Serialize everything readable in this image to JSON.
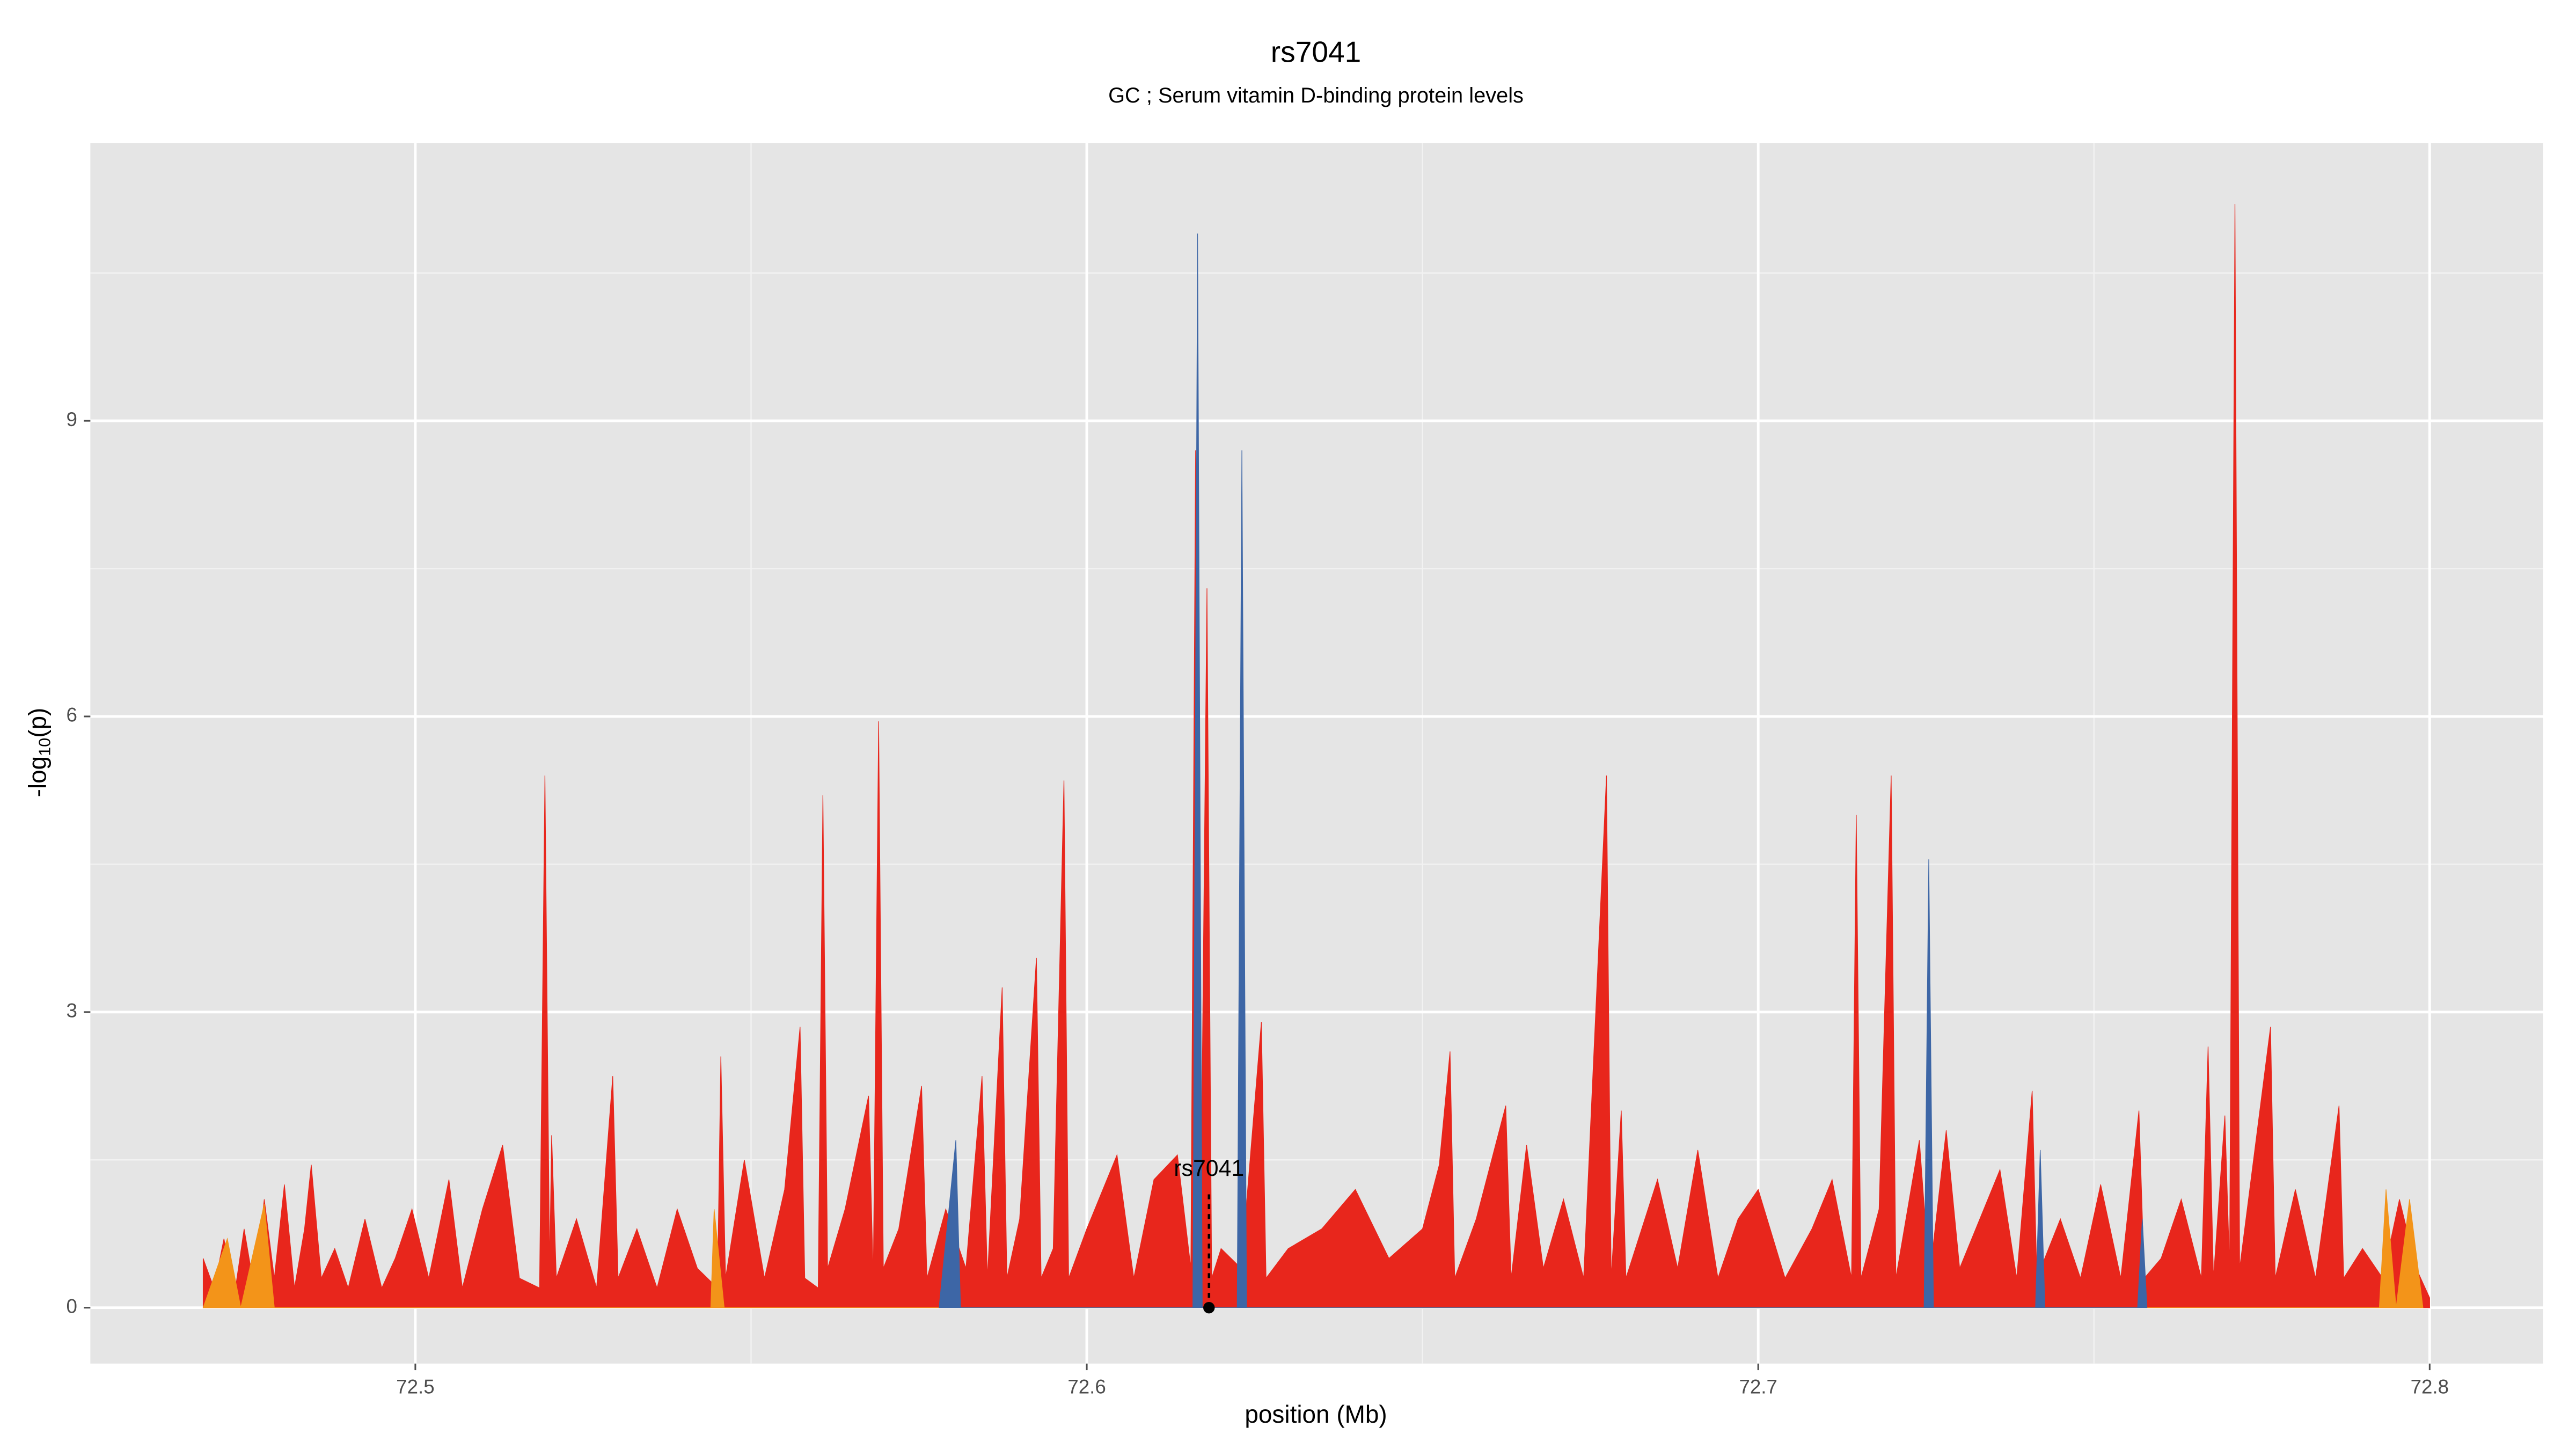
{
  "chart_data": {
    "type": "area",
    "title": "rs7041",
    "subtitle": "GC ; Serum vitamin D-binding protein levels",
    "x_label": "position (Mb)",
    "y_label": [
      "-log",
      "10",
      "(p)"
    ],
    "xlim": [
      72.4516,
      72.8169
    ],
    "xticks": [
      72.5,
      72.6,
      72.7,
      72.8
    ],
    "ylim": [
      -0.567,
      11.82
    ],
    "yticks": [
      0,
      3,
      6,
      9
    ],
    "grid": true,
    "annotation": {
      "label": "rs7041",
      "x": 72.6182,
      "y": 0
    },
    "series": [
      {
        "name": "red",
        "color": "#e8261c",
        "x": [
          72.4684,
          72.47,
          72.4715,
          72.473,
          72.4745,
          72.476,
          72.4775,
          72.479,
          72.4805,
          72.482,
          72.4835,
          72.4845,
          72.486,
          72.488,
          72.49,
          72.4925,
          72.495,
          72.497,
          72.4995,
          72.502,
          72.505,
          72.507,
          72.51,
          72.513,
          72.5155,
          72.5185,
          72.5193,
          72.52,
          72.5203,
          72.521,
          72.524,
          72.527,
          72.5294,
          72.5302,
          72.533,
          72.536,
          72.539,
          72.542,
          72.545,
          72.5455,
          72.5462,
          72.549,
          72.552,
          72.555,
          72.5573,
          72.558,
          72.56,
          72.5607,
          72.5614,
          72.564,
          72.5675,
          72.5682,
          72.569,
          72.5697,
          72.572,
          72.5754,
          72.5762,
          72.579,
          72.582,
          72.5844,
          72.5852,
          72.5874,
          72.5881,
          72.59,
          72.5925,
          72.5932,
          72.595,
          72.5966,
          72.5973,
          72.6,
          72.6045,
          72.607,
          72.61,
          72.6135,
          72.6155,
          72.6162,
          72.6169,
          72.6179,
          72.6186,
          72.62,
          72.623,
          72.626,
          72.6267,
          72.63,
          72.635,
          72.64,
          72.645,
          72.65,
          72.6525,
          72.6541,
          72.6548,
          72.658,
          72.6624,
          72.6632,
          72.6655,
          72.668,
          72.671,
          72.674,
          72.6774,
          72.6781,
          72.6796,
          72.6803,
          72.685,
          72.688,
          72.691,
          72.694,
          72.697,
          72.7,
          72.704,
          72.708,
          72.711,
          72.7139,
          72.7146,
          72.7153,
          72.718,
          72.7198,
          72.7205,
          72.724,
          72.7255,
          72.728,
          72.73,
          72.733,
          72.736,
          72.7385,
          72.7408,
          72.7415,
          72.745,
          72.748,
          72.751,
          72.754,
          72.7567,
          72.7575,
          72.76,
          72.763,
          72.766,
          72.767,
          72.7678,
          72.7695,
          72.7702,
          72.771,
          72.7717,
          72.7763,
          72.777,
          72.78,
          72.783,
          72.7865,
          72.7872,
          72.79,
          72.793,
          72.7955,
          72.798,
          72.8
        ],
        "values": [
          0.5,
          0.2,
          0.7,
          0.1,
          0.8,
          0.2,
          1.1,
          0.3,
          1.25,
          0.2,
          0.8,
          1.45,
          0.3,
          0.6,
          0.2,
          0.9,
          0.2,
          0.5,
          1.0,
          0.3,
          1.3,
          0.2,
          1.0,
          1.65,
          0.3,
          0.2,
          5.4,
          0.4,
          1.75,
          0.3,
          0.9,
          0.2,
          2.35,
          0.3,
          0.8,
          0.2,
          1.0,
          0.4,
          0.2,
          2.55,
          0.3,
          1.5,
          0.3,
          1.2,
          2.85,
          0.3,
          0.2,
          5.2,
          0.4,
          1.0,
          2.15,
          0.3,
          5.95,
          0.4,
          0.8,
          2.25,
          0.3,
          1.0,
          0.4,
          2.35,
          0.3,
          3.25,
          0.3,
          0.9,
          3.55,
          0.3,
          0.6,
          5.35,
          0.3,
          0.8,
          1.55,
          0.3,
          1.3,
          1.55,
          0.4,
          8.7,
          0.3,
          7.3,
          0.3,
          0.6,
          0.4,
          2.9,
          0.3,
          0.6,
          0.8,
          1.2,
          0.5,
          0.8,
          1.45,
          2.6,
          0.3,
          0.9,
          2.05,
          0.3,
          1.65,
          0.4,
          1.1,
          0.3,
          5.4,
          0.3,
          2.0,
          0.3,
          1.3,
          0.4,
          1.6,
          0.3,
          0.9,
          1.2,
          0.3,
          0.8,
          1.3,
          0.3,
          5.0,
          0.3,
          1.0,
          5.4,
          0.3,
          1.7,
          0.3,
          1.8,
          0.4,
          0.9,
          1.4,
          0.3,
          2.2,
          0.3,
          0.9,
          0.3,
          1.25,
          0.3,
          2.0,
          0.3,
          0.5,
          1.1,
          0.3,
          2.65,
          0.3,
          1.95,
          0.4,
          11.2,
          0.4,
          2.85,
          0.3,
          1.2,
          0.3,
          2.05,
          0.3,
          0.6,
          0.3,
          1.1,
          0.4,
          0.1
        ]
      },
      {
        "name": "orange",
        "color": "#f39419",
        "x": [
          72.4684,
          72.472,
          72.474,
          72.4775,
          72.479,
          72.544,
          72.5445,
          72.546,
          72.7925,
          72.7935,
          72.795,
          72.797,
          72.799
        ],
        "values": [
          0,
          0.7,
          0,
          1.05,
          0,
          0,
          1.0,
          0,
          0,
          1.2,
          0,
          1.1,
          0
        ]
      },
      {
        "name": "blue",
        "color": "#3d66a6",
        "x": [
          72.578,
          72.5805,
          72.5812,
          72.6158,
          72.6165,
          72.6172,
          72.6224,
          72.6231,
          72.6238,
          72.7247,
          72.7254,
          72.7261,
          72.7413,
          72.742,
          72.7427,
          72.7565,
          72.7572,
          72.7579
        ],
        "values": [
          0,
          1.7,
          0,
          0,
          10.9,
          0,
          0,
          8.7,
          0,
          0,
          4.55,
          0,
          0,
          1.6,
          0,
          0,
          0.9,
          0
        ]
      }
    ]
  }
}
